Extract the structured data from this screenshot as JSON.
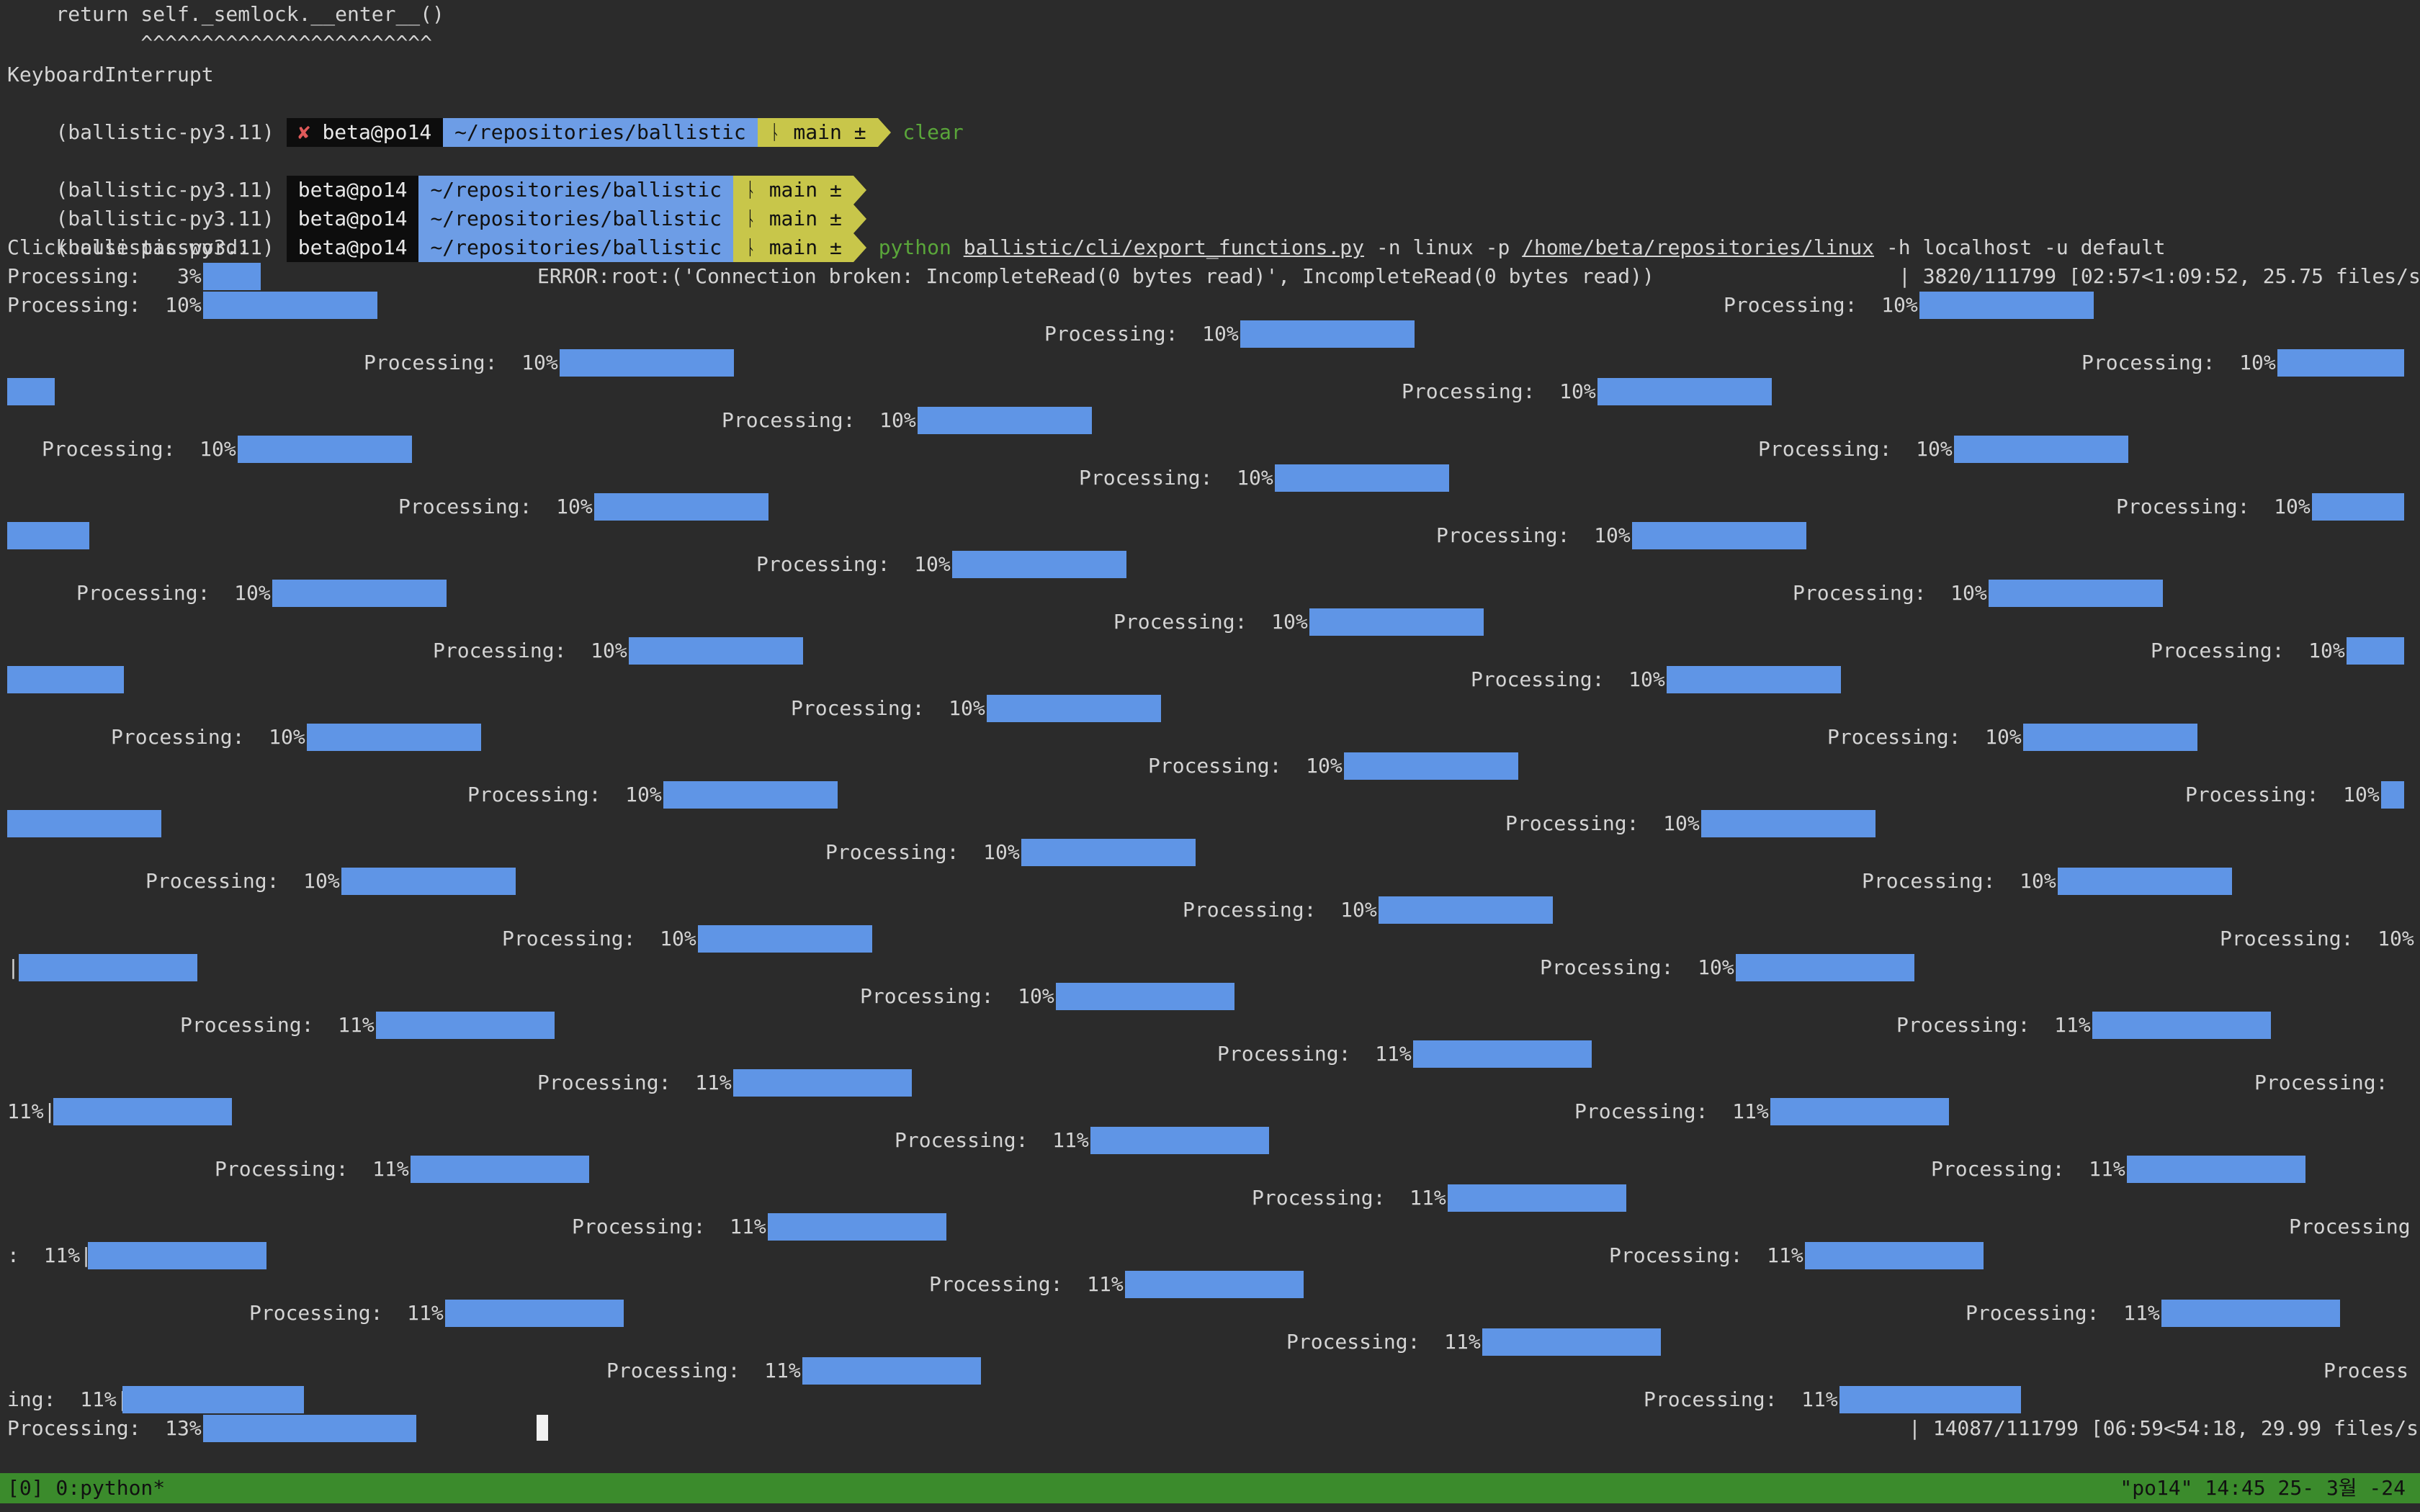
{
  "terminal": {
    "traceback_line": "    return self._semlock.__enter__()",
    "caret_line": "           ^^^^^^^^^^^^^^^^^^^^^^^^",
    "interrupt": "KeyboardInterrupt",
    "venv": "(ballistic-py3.11)",
    "prompt": {
      "fail_mark": "✘",
      "user_host": "beta@po14",
      "dir": "~/repositories/ballistic",
      "branch": "ᚿ main ±"
    },
    "clear_cmd": "clear",
    "cmd_python": "python",
    "cmd_script": "ballistic/cli/export_functions.py",
    "cmd_mid": " -n linux -p ",
    "cmd_path": "/home/beta/repositories/linux",
    "cmd_end": " -h localhost -u default",
    "password_prompt": "Clickhouse password:",
    "first_progress_label": "Processing:   3%|",
    "error_text": "ERROR:root:('Connection broken: IncompleteRead(0 bytes read)', IncompleteRead(0 bytes read))",
    "first_stats": "| 3820/111799 [02:57<1:09:52, 25.75 files/s]",
    "label_10": "Processing:  10%|",
    "label_11": "Processing:  11%|",
    "label_10_nobar": "Processing:  10%",
    "label_processing_colon": "Processing:",
    "label_processing": "Processing",
    "label_process": "Process",
    "wrap_pipe": "|",
    "wrap_11": "11%|",
    "wrap_colon_11": ":  11%|",
    "wrap_ing_11": "ing:  11%|",
    "last_progress_label": "Processing:  13%|",
    "last_stats": "| 14087/111799 [06:59<54:18, 29.99 files/s]",
    "progress_fill_first": 0.034,
    "progress_fill_last": 0.126
  },
  "statusbar": {
    "left": "[0] 0:python*",
    "right": "\"po14\" 14:45 25- 3월 -24"
  },
  "colors": {
    "background": "#2b2b2b",
    "progress_bar": "#5f95e6",
    "prompt_dir": "#6d9de6",
    "prompt_git": "#c8c64a",
    "status_bar": "#3b8b2c",
    "command_green": "#5aa63a"
  }
}
